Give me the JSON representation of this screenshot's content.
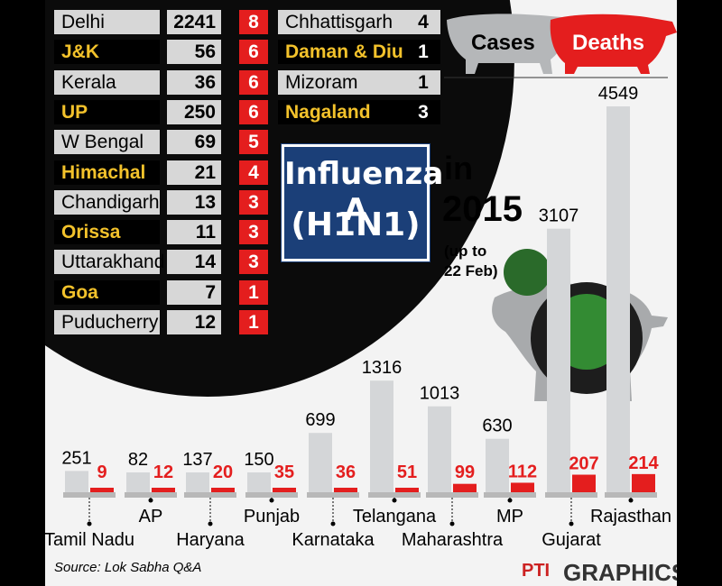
{
  "colors": {
    "cases": "#d4d6d8",
    "deaths": "#e41e1e",
    "table_name_yellow": "#f3c22b",
    "title_bg": "#1b3f78",
    "background": "#f3f3f3"
  },
  "legend": {
    "cases": "Cases",
    "deaths": "Deaths"
  },
  "title": {
    "line1": "Influenza A",
    "line2": "(H1N1)",
    "in": "in",
    "year": "2015",
    "note_line1": "(up to",
    "note_line2": "22 Feb)"
  },
  "table_left": [
    {
      "state": "Delhi",
      "cases": "2241",
      "deaths": "8"
    },
    {
      "state": "J&K",
      "cases": "56",
      "deaths": "6"
    },
    {
      "state": "Kerala",
      "cases": "36",
      "deaths": "6"
    },
    {
      "state": "UP",
      "cases": "250",
      "deaths": "6"
    },
    {
      "state": "W Bengal",
      "cases": "69",
      "deaths": "5"
    },
    {
      "state": "Himachal",
      "cases": "21",
      "deaths": "4"
    },
    {
      "state": "Chandigarh",
      "cases": "13",
      "deaths": "3"
    },
    {
      "state": "Orissa",
      "cases": "11",
      "deaths": "3"
    },
    {
      "state": "Uttarakhand",
      "cases": "14",
      "deaths": "3"
    },
    {
      "state": "Goa",
      "cases": "7",
      "deaths": "1"
    },
    {
      "state": "Puducherry",
      "cases": "12",
      "deaths": "1"
    }
  ],
  "table_right": [
    {
      "state": "Chhattisgarh",
      "value": "4"
    },
    {
      "state": "Daman & Diu",
      "value": "1"
    },
    {
      "state": "Mizoram",
      "value": "1"
    },
    {
      "state": "Nagaland",
      "value": "3"
    }
  ],
  "chart_data": {
    "type": "bar",
    "categories": [
      "Tamil Nadu",
      "AP",
      "Haryana",
      "Punjab",
      "Karnataka",
      "Telangana",
      "Maharashtra",
      "MP",
      "Gujarat",
      "Rajasthan"
    ],
    "series": [
      {
        "name": "Cases",
        "values": [
          251,
          82,
          137,
          150,
          699,
          1316,
          1013,
          630,
          3107,
          4549
        ]
      },
      {
        "name": "Deaths",
        "values": [
          9,
          12,
          20,
          35,
          36,
          51,
          99,
          112,
          207,
          214
        ]
      }
    ],
    "ylim": [
      0,
      4549
    ],
    "grid": false,
    "legend": "top-right"
  },
  "footer": {
    "source": "Source: Lok Sabha Q&A",
    "pti": "PTI",
    "graphics": "GRAPHICS"
  }
}
